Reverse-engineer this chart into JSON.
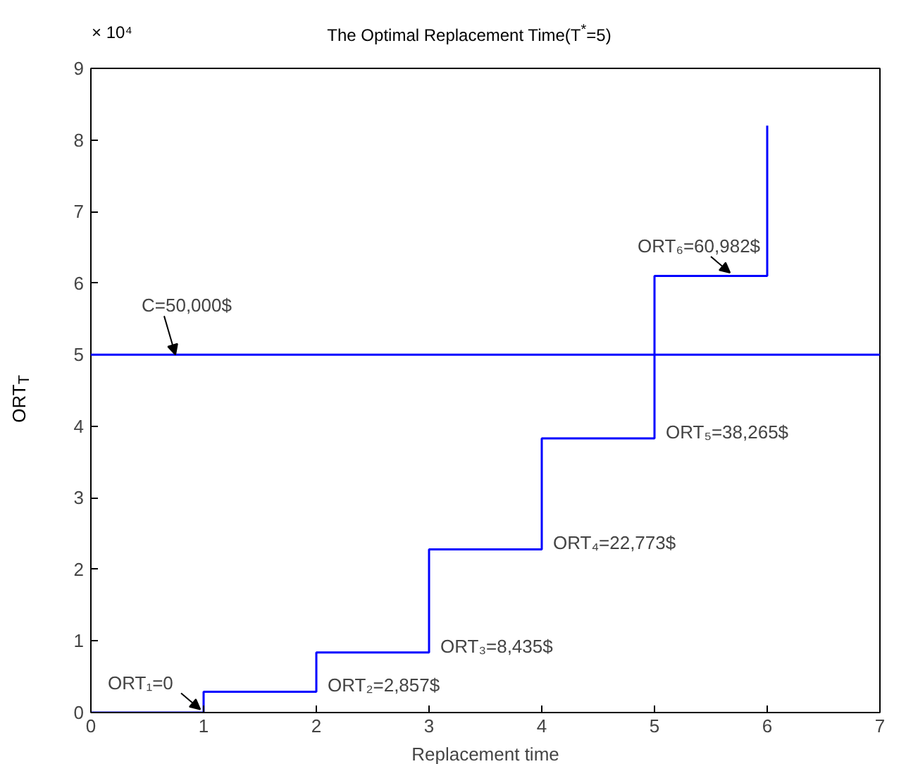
{
  "chart_data": {
    "type": "step",
    "title": "The Optimal Replacement Time(T$^{*}$=5)",
    "xlabel": "Replacement time",
    "ylabel": "ORT$_{T}$",
    "x": [
      0,
      1,
      2,
      3,
      4,
      5,
      6
    ],
    "series": [
      {
        "color": "#0000ff",
        "values": [
          0,
          0.29,
          0.84,
          2.28,
          3.83,
          6.1,
          8.2
        ]
      }
    ],
    "xlim": [
      0,
      7
    ],
    "xticks": [
      0,
      1,
      2,
      3,
      4,
      5,
      6,
      7
    ],
    "ylim": [
      0,
      9
    ],
    "yticks": [
      0,
      1,
      2,
      3,
      4,
      5,
      6,
      7,
      8,
      9
    ],
    "ref_lines": [
      {
        "axis": "y",
        "value": 5,
        "color": "#0000ff"
      }
    ],
    "annotations": [
      "× 10⁴",
      {
        "text": "C=50,000$",
        "x": 0.75,
        "y": 5
      },
      {
        "text": "ORT₁=0",
        "x": 1,
        "y": 0
      },
      {
        "text": "ORT₂=2,857$",
        "x": 2,
        "y": 0.29
      },
      {
        "text": "ORT₃=8,435$",
        "x": 3,
        "y": 0.84
      },
      {
        "text": "ORT₄=22,773$",
        "x": 4,
        "y": 2.28
      },
      {
        "text": "ORT₅=38,265$",
        "x": 5,
        "y": 3.83
      },
      {
        "text": "ORT₆=60,982$",
        "x": 5.7,
        "y": 6.1
      }
    ],
    "grid": false
  }
}
